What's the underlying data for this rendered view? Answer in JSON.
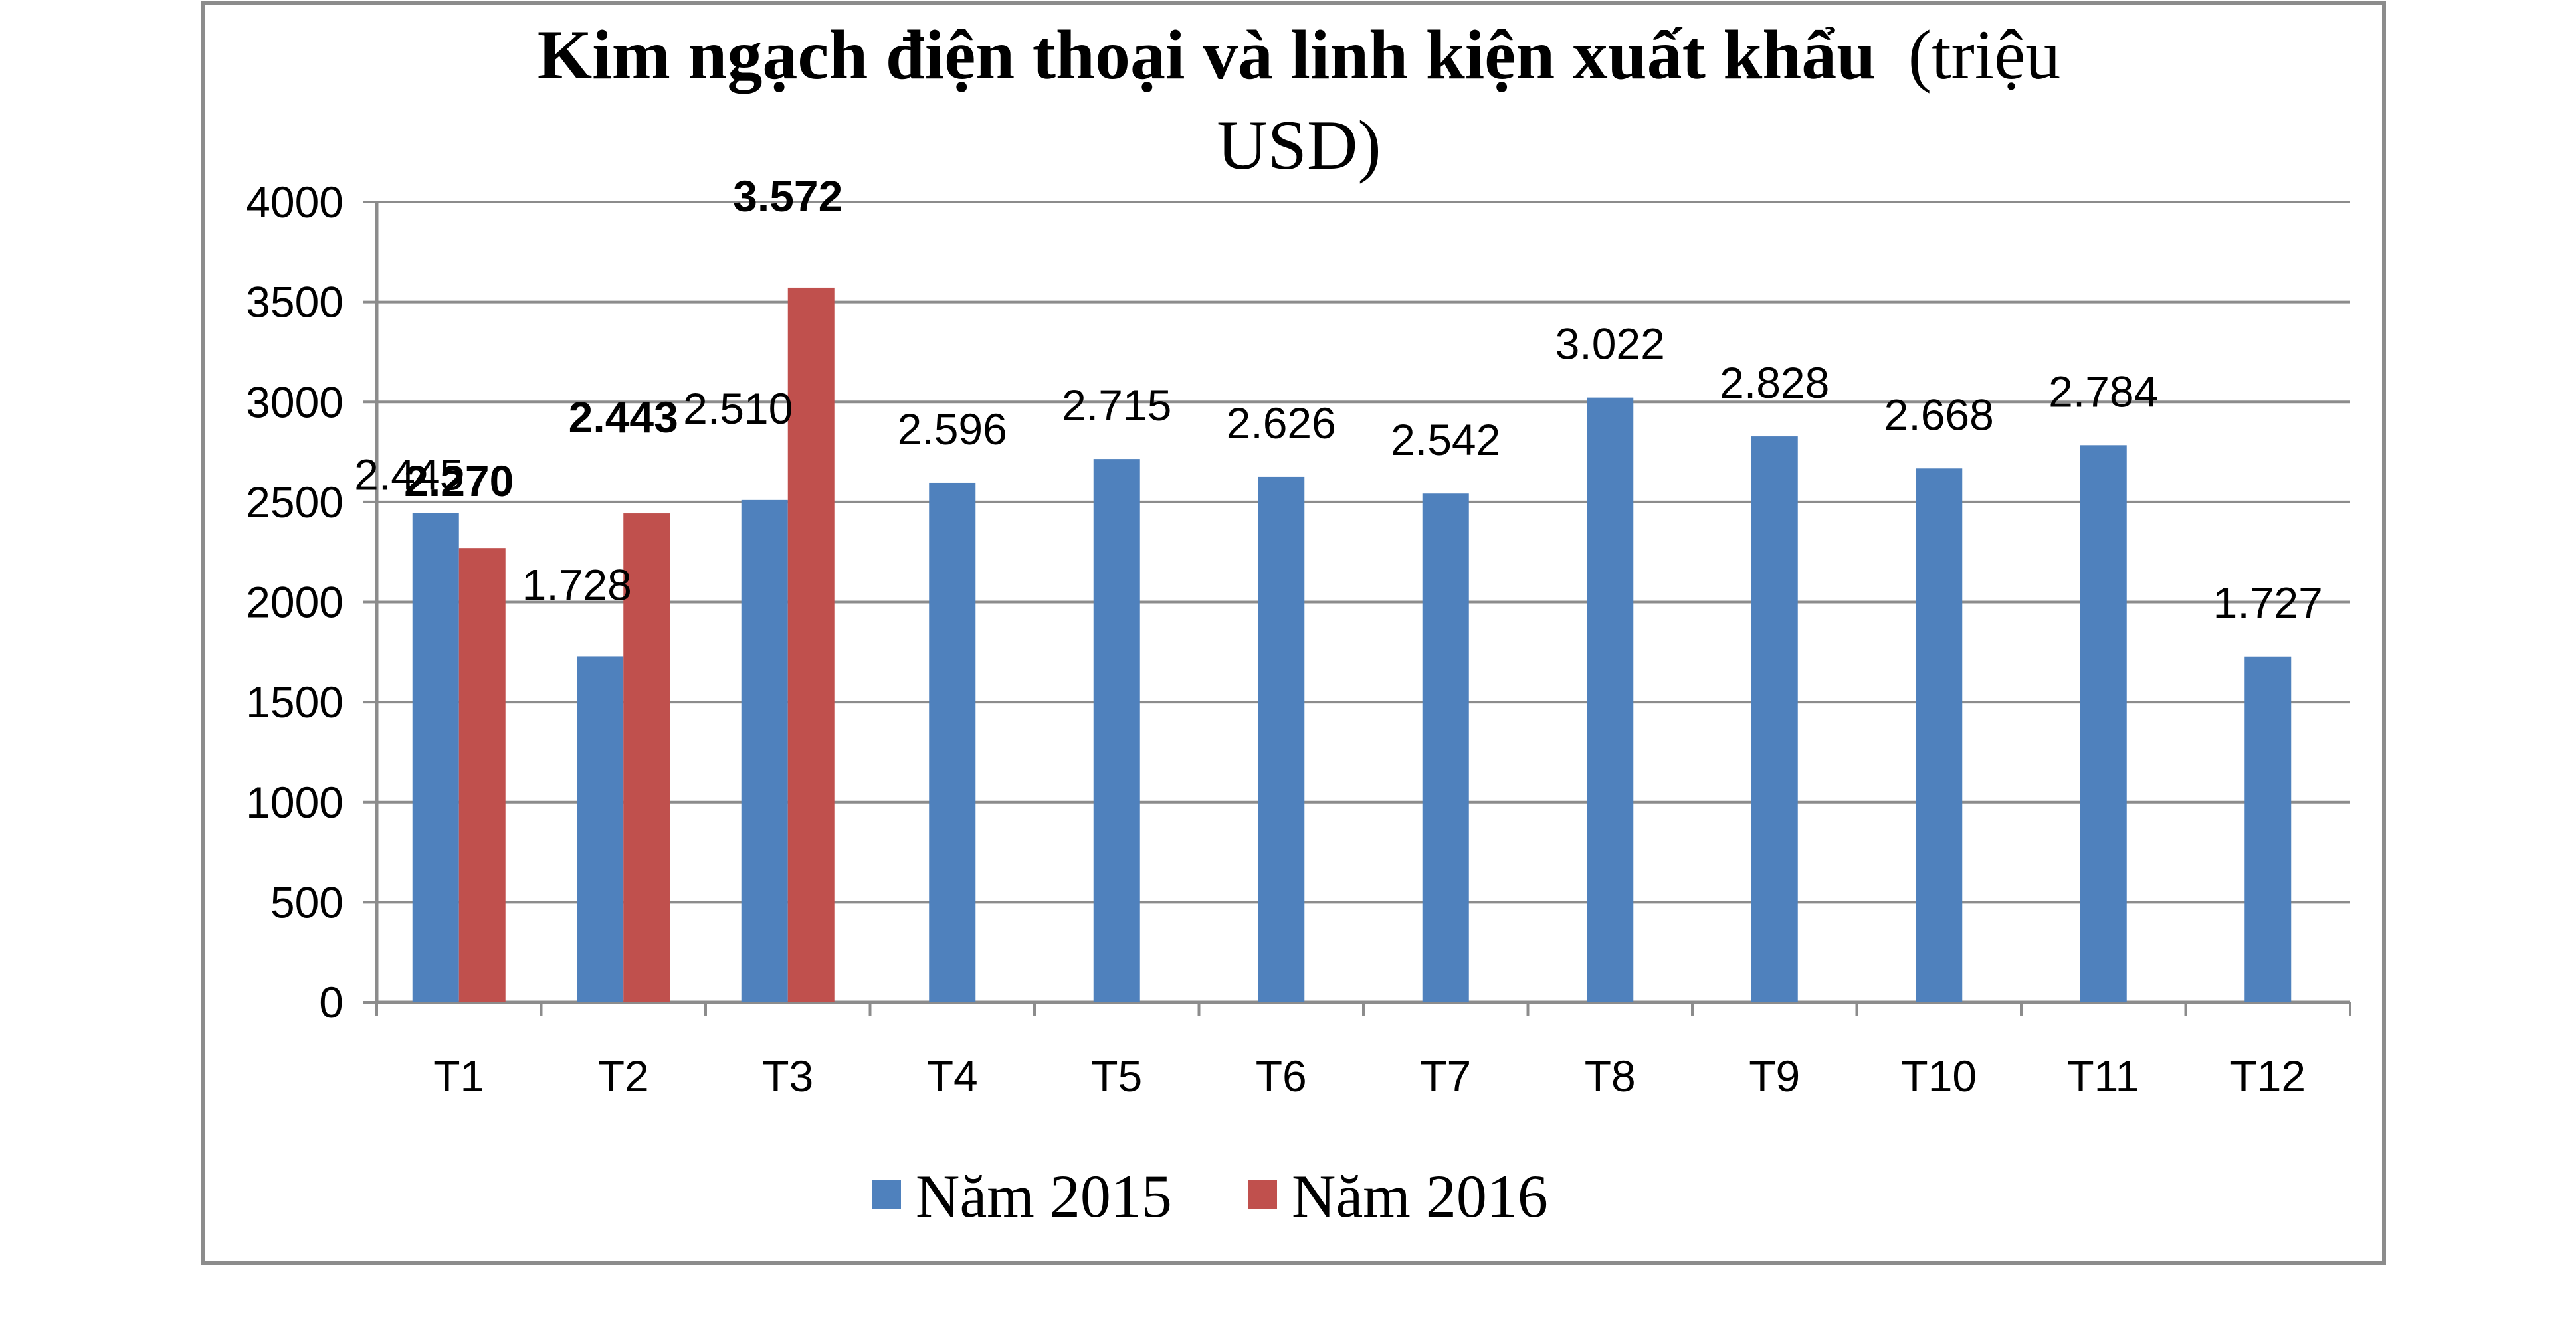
{
  "chart_data": {
    "type": "bar",
    "title": {
      "bold": "Kim ngạch điện thoại và linh kiện xuất khẩu",
      "normal_line1": "(triệu",
      "normal_line2": "USD)"
    },
    "categories": [
      "T1",
      "T2",
      "T3",
      "T4",
      "T5",
      "T6",
      "T7",
      "T8",
      "T9",
      "T10",
      "T11",
      "T12"
    ],
    "series": [
      {
        "name": "Năm 2015",
        "color": "#4F81BD",
        "values": [
          2445,
          1728,
          2510,
          2596,
          2715,
          2626,
          2542,
          3022,
          2828,
          2668,
          2784,
          1727
        ],
        "labels": [
          "2.445",
          "1.728",
          "2.510",
          "2.596",
          "2.715",
          "2.626",
          "2.542",
          "3.022",
          "2.828",
          "2.668",
          "2.784",
          "1.727"
        ],
        "label_bold": false
      },
      {
        "name": "Năm 2016",
        "color": "#C0504D",
        "values": [
          2270,
          2443,
          3572,
          null,
          null,
          null,
          null,
          null,
          null,
          null,
          null,
          null
        ],
        "labels": [
          "2.270",
          "2.443",
          "3.572",
          null,
          null,
          null,
          null,
          null,
          null,
          null,
          null,
          null
        ],
        "label_bold": true
      }
    ],
    "ylim": [
      0,
      4000
    ],
    "yticks": [
      0,
      500,
      1000,
      1500,
      2000,
      2500,
      3000,
      3500,
      4000
    ],
    "grid": true,
    "legend_position": "bottom"
  }
}
